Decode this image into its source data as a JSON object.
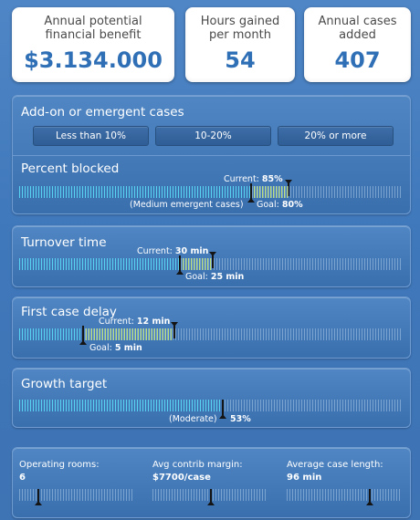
{
  "kpis": {
    "benefit": {
      "label_line1": "Annual potential",
      "label_line2": "financial benefit",
      "value": "$3.134.000"
    },
    "hours": {
      "label_line1": "Hours gained",
      "label_line2": "per month",
      "value": "54"
    },
    "cases": {
      "label_line1": "Annual cases",
      "label_line2": "added",
      "value": "407"
    }
  },
  "addon": {
    "title": "Add-on or emergent cases",
    "options": [
      "Less than 10%",
      "10-20%",
      "20% or more"
    ]
  },
  "percent_blocked": {
    "title": "Percent blocked",
    "current_label": "Current:",
    "current_value": "85%",
    "goal_label": "Goal:",
    "goal_value": "80%",
    "note": "(Medium emergent cases)",
    "current_fraction": 0.85,
    "goal_fraction": 0.8
  },
  "turnover": {
    "title": "Turnover time",
    "current_label": "Current:",
    "current_value": "30 min",
    "goal_label": "Goal:",
    "goal_value": "25 min"
  },
  "first_case": {
    "title": "First case delay",
    "current_label": "Current:",
    "current_value": "12 min",
    "goal_label": "Goal:",
    "goal_value": "5 min"
  },
  "growth": {
    "title": "Growth target",
    "note": "(Moderate)",
    "value": "53%",
    "fraction": 0.53
  },
  "inputs": {
    "operating_rooms": {
      "label": "Operating rooms:",
      "value": "6"
    },
    "contrib_margin": {
      "label": "Avg contrib margin:",
      "value": "$7700/case"
    },
    "case_length": {
      "label": "Average case length:",
      "value": "96 min"
    }
  }
}
